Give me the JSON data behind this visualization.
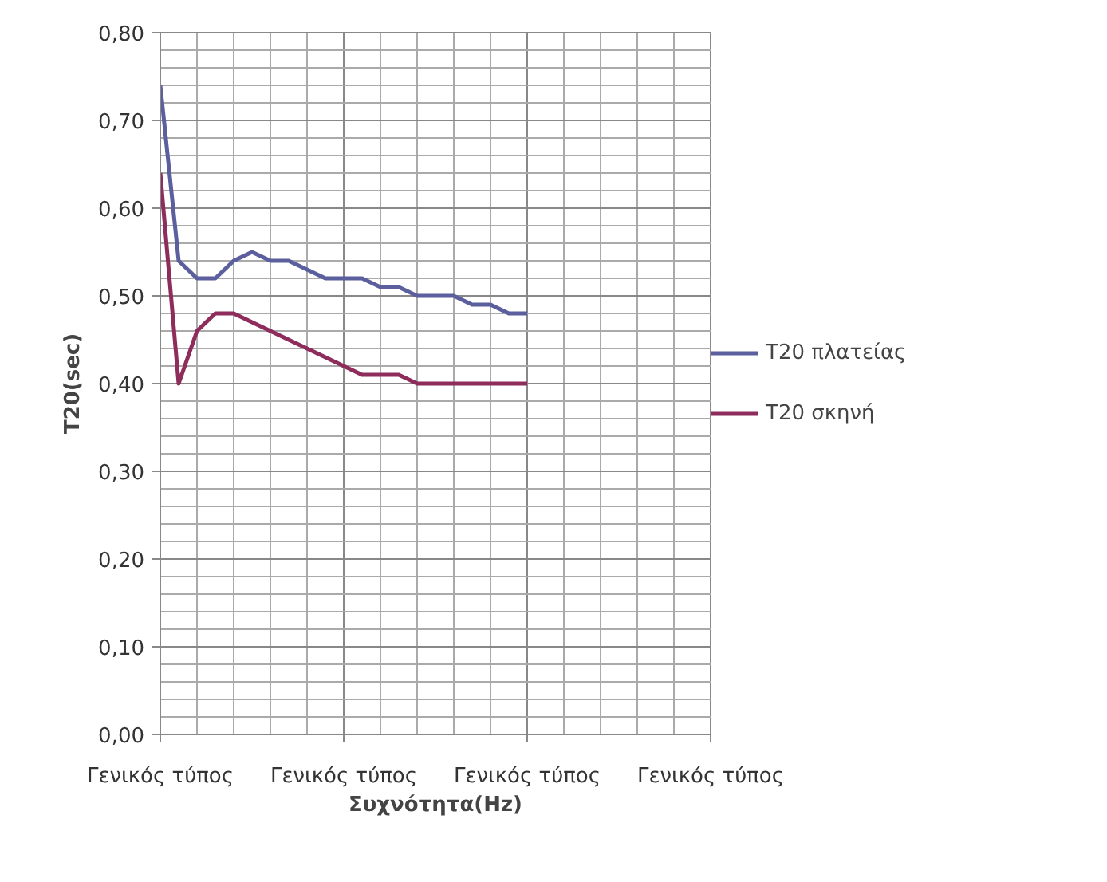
{
  "chart_data": {
    "type": "line",
    "xlabel": "Συχνότητα(Hz)",
    "ylabel": "T20(sec)",
    "categories": [
      "Γενικός τύπος",
      null,
      null,
      null,
      null,
      null,
      null,
      null,
      null,
      null,
      "Γενικός τύπος",
      null,
      null,
      null,
      null,
      null,
      null,
      null,
      null,
      null,
      "Γενικός τύπος",
      null,
      null,
      null,
      null,
      null,
      null,
      null,
      null,
      null,
      "Γενικός τύπος"
    ],
    "series": [
      {
        "name": "T20 πλατείας",
        "color": "#5b5f9e",
        "values": [
          0.74,
          0.54,
          0.52,
          0.52,
          0.54,
          0.55,
          0.54,
          0.54,
          0.53,
          0.52,
          0.52,
          0.52,
          0.51,
          0.51,
          0.5,
          0.5,
          0.5,
          0.49,
          0.49,
          0.48,
          0.48,
          null,
          null,
          null,
          null,
          null,
          null,
          null,
          null,
          null,
          null
        ]
      },
      {
        "name": "T20 σκηνή",
        "color": "#8e2d5c",
        "values": [
          0.64,
          0.4,
          0.46,
          0.48,
          0.48,
          0.47,
          0.46,
          0.45,
          0.44,
          0.43,
          0.42,
          0.41,
          0.41,
          0.41,
          0.4,
          0.4,
          0.4,
          0.4,
          0.4,
          0.4,
          0.4,
          null,
          null,
          null,
          null,
          null,
          null,
          null,
          null,
          null,
          null
        ]
      }
    ],
    "ylim": [
      0,
      0.8
    ],
    "yticks": [
      {
        "value": 0,
        "label": "0,00"
      },
      {
        "value": 0.1,
        "label": "0,10"
      },
      {
        "value": 0.2,
        "label": "0,20"
      },
      {
        "value": 0.3,
        "label": "0,30"
      },
      {
        "value": 0.4,
        "label": "0,40"
      },
      {
        "value": 0.5,
        "label": "0,50"
      },
      {
        "value": 0.6,
        "label": "0,60"
      },
      {
        "value": 0.7,
        "label": "0,70"
      },
      {
        "value": 0.8,
        "label": "0,80"
      }
    ],
    "grid": true,
    "legend": "right",
    "line_style": "solid"
  }
}
